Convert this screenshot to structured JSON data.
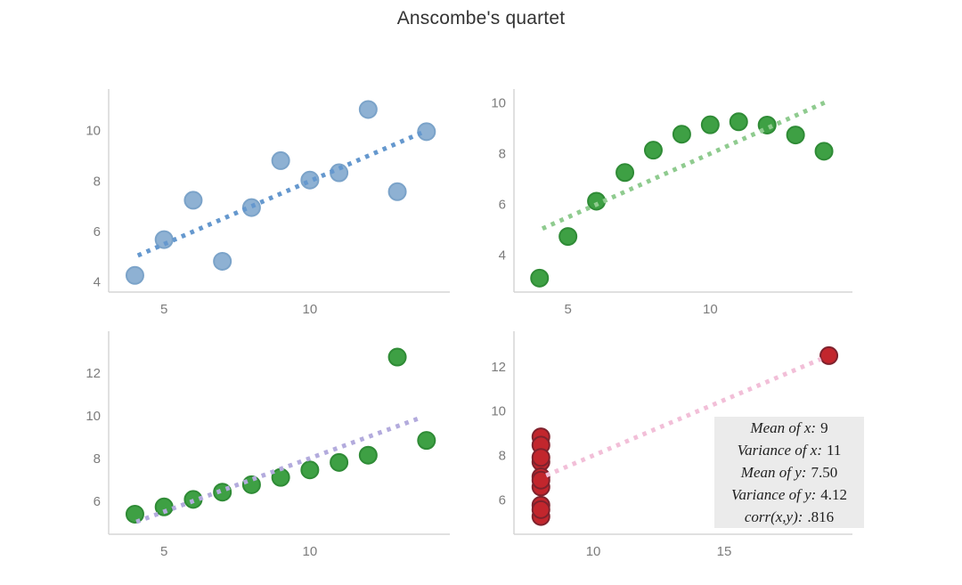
{
  "title": "Anscombe's quartet",
  "colors": {
    "background": "#ffffff",
    "title": "#333333",
    "axis_line": "#d5d5d5",
    "tick_label": "#7c7c7c",
    "annotation_bg": "#ebebeb",
    "annotation_text": "#1f1f1f"
  },
  "chart_data": [
    {
      "name": "dataset-I",
      "type": "scatter",
      "position": "top-left",
      "x": [
        10,
        8,
        13,
        9,
        11,
        14,
        6,
        4,
        12,
        7,
        5
      ],
      "y": [
        8.04,
        6.95,
        7.58,
        8.81,
        8.33,
        9.96,
        7.24,
        4.26,
        10.84,
        4.82,
        5.68
      ],
      "marker_color": "#8eb1d3",
      "marker_line_color": "#7ba3c9",
      "trendline": {
        "x1": 4.1,
        "y1": 5.05,
        "x2": 13.9,
        "y2": 9.95,
        "color": "#6598ce",
        "style": "dotted"
      },
      "xlim": [
        3.1,
        14.8
      ],
      "ylim": [
        3.6,
        11.65
      ],
      "xticks": [
        5,
        10
      ],
      "yticks": [
        4,
        6,
        8,
        10
      ],
      "grid": false,
      "legend": false
    },
    {
      "name": "dataset-II",
      "type": "scatter",
      "position": "top-right",
      "x": [
        10,
        8,
        13,
        9,
        11,
        14,
        6,
        4,
        12,
        7,
        5
      ],
      "y": [
        9.14,
        8.14,
        8.74,
        8.77,
        9.26,
        8.1,
        6.13,
        3.1,
        9.13,
        7.26,
        4.74
      ],
      "marker_color": "#3ea044",
      "marker_line_color": "#2f8b36",
      "trendline": {
        "x1": 4.1,
        "y1": 5.05,
        "x2": 14.05,
        "y2": 10.03,
        "color": "#8fcb8f",
        "style": "dotted"
      },
      "xlim": [
        3.1,
        15.0
      ],
      "ylim": [
        2.55,
        10.55
      ],
      "xticks": [
        5,
        10
      ],
      "yticks": [
        4,
        6,
        8,
        10
      ],
      "grid": false,
      "legend": false
    },
    {
      "name": "dataset-III",
      "type": "scatter",
      "position": "bottom-left",
      "x": [
        10,
        8,
        13,
        9,
        11,
        14,
        6,
        4,
        12,
        7,
        5
      ],
      "y": [
        7.46,
        6.77,
        12.74,
        7.11,
        7.81,
        8.84,
        6.08,
        5.39,
        8.15,
        6.42,
        5.73
      ],
      "marker_color": "#3ea044",
      "marker_line_color": "#2f8b36",
      "trendline": {
        "x1": 4.05,
        "y1": 5.03,
        "x2": 13.85,
        "y2": 9.93,
        "color": "#b3abdd",
        "style": "dotted"
      },
      "xlim": [
        3.1,
        14.8
      ],
      "ylim": [
        4.45,
        13.95
      ],
      "xticks": [
        5,
        10
      ],
      "yticks": [
        6,
        8,
        10,
        12
      ],
      "grid": false,
      "legend": false
    },
    {
      "name": "dataset-IV",
      "type": "scatter",
      "position": "bottom-right",
      "x": [
        8,
        8,
        8,
        8,
        8,
        8,
        8,
        19,
        8,
        8,
        8
      ],
      "y": [
        6.58,
        5.76,
        7.71,
        8.84,
        8.47,
        7.04,
        5.25,
        12.5,
        5.56,
        7.91,
        6.89
      ],
      "marker_color": "#c2262d",
      "marker_line_color": "#7e222d",
      "trendline": {
        "x1": 8.2,
        "y1": 7.1,
        "x2": 18.7,
        "y2": 12.35,
        "color": "#f2bfd8",
        "style": "dotted"
      },
      "xlim": [
        6.97,
        19.9
      ],
      "ylim": [
        4.45,
        13.6
      ],
      "xticks": [
        10,
        15
      ],
      "yticks": [
        6,
        8,
        10,
        12
      ],
      "grid": false,
      "legend": false
    }
  ],
  "annotation": {
    "lines": [
      {
        "label": "Mean of x:",
        "value": "9"
      },
      {
        "label": "Variance of x:",
        "value": "11"
      },
      {
        "label": "Mean of y:",
        "value": "7.50"
      },
      {
        "label": "Variance of y:",
        "value": "4.12"
      },
      {
        "label": "corr(x,y):",
        "value": ".816"
      }
    ]
  }
}
